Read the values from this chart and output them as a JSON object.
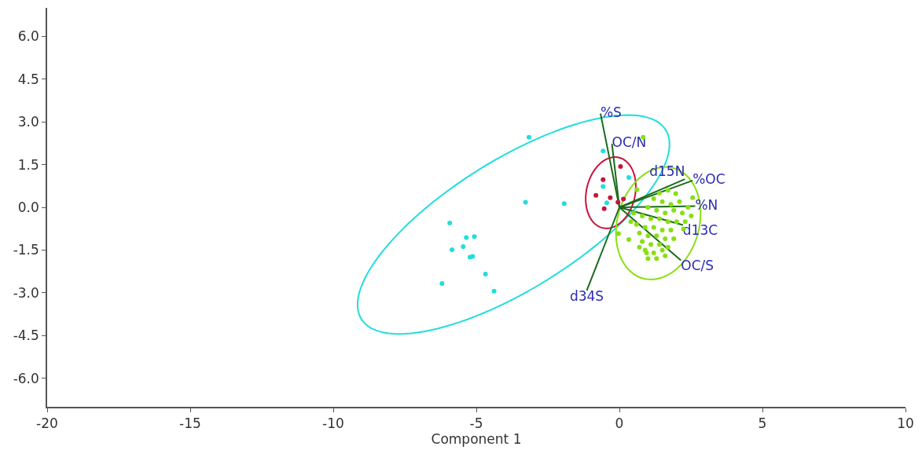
{
  "chart_data": {
    "type": "scatter",
    "xlabel": "Component 1",
    "xlim": [
      -20,
      10
    ],
    "xticks": [
      -20,
      -15,
      -10,
      -5,
      0,
      5,
      10
    ],
    "ylim": [
      -7,
      7
    ],
    "yticks": [
      {
        "value": -6,
        "label": "-6.0"
      },
      {
        "value": -4.5,
        "label": "-4.5"
      },
      {
        "value": -3,
        "label": "-3.0"
      },
      {
        "value": -1.5,
        "label": "-1.5"
      },
      {
        "value": 0,
        "label": "0.0"
      },
      {
        "value": 1.5,
        "label": "1.5"
      },
      {
        "value": 3,
        "label": "3.0"
      },
      {
        "value": 4.5,
        "label": "4.5"
      },
      {
        "value": 6,
        "label": "6.0"
      }
    ],
    "legend": false,
    "marker": "circle",
    "series": [
      {
        "color": "#22dddd",
        "x": [
          -3.16,
          -3.28,
          -1.93,
          -5.93,
          -5.35,
          -5.07,
          -5.46,
          -5.85,
          -5.22,
          -5.13,
          -4.68,
          -6.2,
          -4.38,
          -0.57,
          0.33,
          -0.57,
          -0.44
        ],
        "values": [
          2.46,
          0.18,
          0.13,
          -0.55,
          -1.06,
          -1.03,
          -1.38,
          -1.49,
          -1.75,
          -1.72,
          -2.34,
          -2.67,
          -2.94,
          1.98,
          1.05,
          0.73,
          0.16
        ]
      },
      {
        "color": "#c8143c",
        "x": [
          0.04,
          -0.57,
          -0.82,
          -0.32,
          -0.05,
          0.14,
          -0.53
        ],
        "values": [
          1.43,
          0.97,
          0.42,
          0.34,
          0.18,
          0.29,
          -0.05
        ]
      },
      {
        "color": "#88e010",
        "x": [
          0.83,
          -0.03,
          0.33,
          0.95,
          2.24,
          2.51,
          2.56,
          1.97,
          0.61,
          1.2,
          1.5,
          1.8,
          2.1,
          1.0,
          1.3,
          1.6,
          1.9,
          2.2,
          0.8,
          1.1,
          1.4,
          1.7,
          2.0,
          0.6,
          0.9,
          1.2,
          1.5,
          1.8,
          0.7,
          1.0,
          1.3,
          1.6,
          1.9,
          0.8,
          1.1,
          1.4,
          1.7,
          0.9,
          1.2,
          1.5,
          1.3,
          1.0,
          0.5,
          0.4,
          1.4,
          1.7,
          2.3,
          2.4,
          1.6,
          0.7
        ],
        "values": [
          2.46,
          -0.92,
          -1.13,
          -1.6,
          -0.76,
          -0.3,
          0.34,
          0.48,
          0.62,
          0.3,
          0.2,
          0.1,
          0.2,
          0.0,
          -0.1,
          -0.2,
          -0.1,
          -0.2,
          -0.3,
          -0.4,
          -0.4,
          -0.5,
          -0.5,
          -0.6,
          -0.7,
          -0.7,
          -0.8,
          -0.8,
          -0.9,
          -1.0,
          -1.0,
          -1.1,
          -1.1,
          -1.2,
          -1.3,
          -1.3,
          -1.4,
          -1.5,
          -1.6,
          -1.5,
          -1.8,
          -1.8,
          -0.2,
          -0.5,
          0.5,
          0.6,
          -0.5,
          0.0,
          -1.7,
          -1.4
        ]
      },
      {
        "type": "line",
        "marker": "none",
        "name": "%S",
        "color": "#1a6b1a",
        "x": [
          0,
          -0.66
        ],
        "values": [
          0,
          3.29
        ]
      },
      {
        "type": "line",
        "marker": "none",
        "name": "OC/N",
        "color": "#1a6b1a",
        "x": [
          0,
          -0.26
        ],
        "values": [
          0,
          2.23
        ]
      },
      {
        "type": "line",
        "marker": "none",
        "name": "d15N",
        "color": "#1a6b1a",
        "x": [
          0,
          2.29
        ],
        "values": [
          0,
          0.99
        ]
      },
      {
        "type": "line",
        "marker": "none",
        "name": "%OC",
        "color": "#1a6b1a",
        "x": [
          0,
          2.56
        ],
        "values": [
          0,
          0.94
        ]
      },
      {
        "type": "line",
        "marker": "none",
        "name": "%N",
        "color": "#1a6b1a",
        "x": [
          0,
          2.65
        ],
        "values": [
          0,
          0.04
        ]
      },
      {
        "type": "line",
        "marker": "none",
        "name": "d13C",
        "color": "#1a6b1a",
        "x": [
          0,
          2.22
        ],
        "values": [
          0,
          -0.62
        ]
      },
      {
        "type": "line",
        "marker": "none",
        "name": "OC/S",
        "color": "#1a6b1a",
        "x": [
          0,
          2.15
        ],
        "values": [
          0,
          -1.86
        ]
      },
      {
        "type": "line",
        "marker": "none",
        "name": "d34S",
        "color": "#1a6b1a",
        "x": [
          0,
          -1.14
        ],
        "values": [
          0,
          -2.92
        ]
      }
    ]
  }
}
